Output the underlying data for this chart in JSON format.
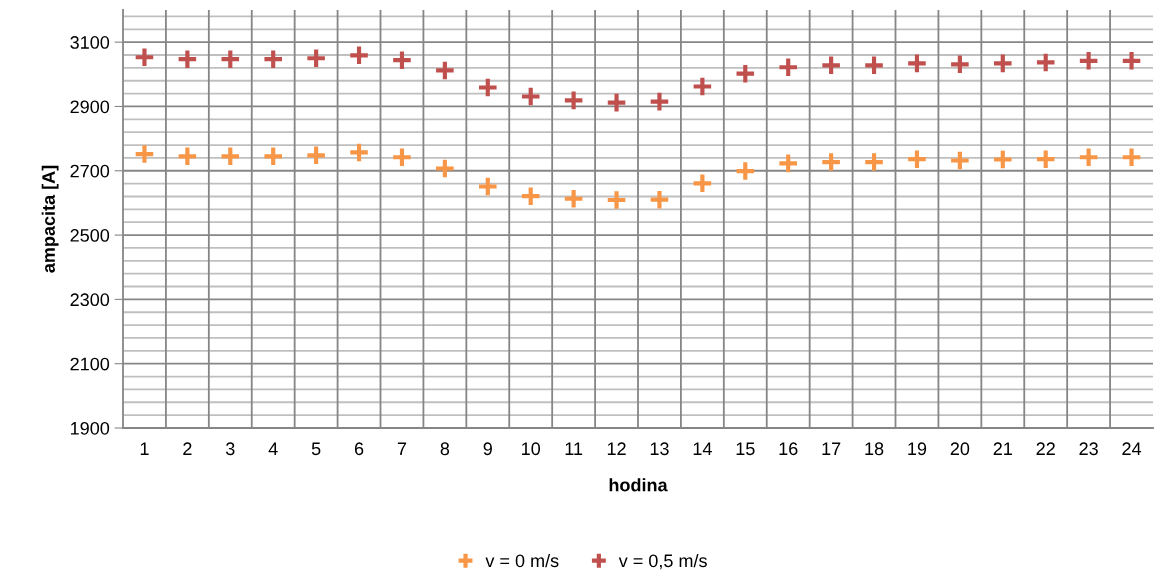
{
  "chart_data": {
    "type": "scatter",
    "xlabel": "hodina",
    "ylabel": "ampacita [A]",
    "categories": [
      "1",
      "2",
      "3",
      "4",
      "5",
      "6",
      "7",
      "8",
      "9",
      "10",
      "11",
      "12",
      "13",
      "14",
      "15",
      "16",
      "17",
      "18",
      "19",
      "20",
      "21",
      "22",
      "23",
      "24"
    ],
    "series": [
      {
        "name": "v = 0 m/s",
        "color": "#f79646",
        "values": [
          2752,
          2745,
          2745,
          2745,
          2748,
          2757,
          2742,
          2707,
          2651,
          2621,
          2613,
          2609,
          2610,
          2661,
          2699,
          2723,
          2727,
          2727,
          2736,
          2732,
          2735,
          2736,
          2742,
          2742
        ]
      },
      {
        "name": "v = 0,5 m/s",
        "color": "#c0504d",
        "values": [
          3053,
          3047,
          3047,
          3047,
          3050,
          3059,
          3044,
          3012,
          2959,
          2931,
          2919,
          2912,
          2915,
          2962,
          3002,
          3022,
          3028,
          3028,
          3034,
          3031,
          3034,
          3037,
          3042,
          3042
        ]
      }
    ],
    "ylim": [
      1900,
      3200
    ],
    "yticks": [
      1900,
      2100,
      2300,
      2500,
      2700,
      2900,
      3100
    ],
    "grid": true,
    "legend": "bottom",
    "marker": "cross"
  }
}
